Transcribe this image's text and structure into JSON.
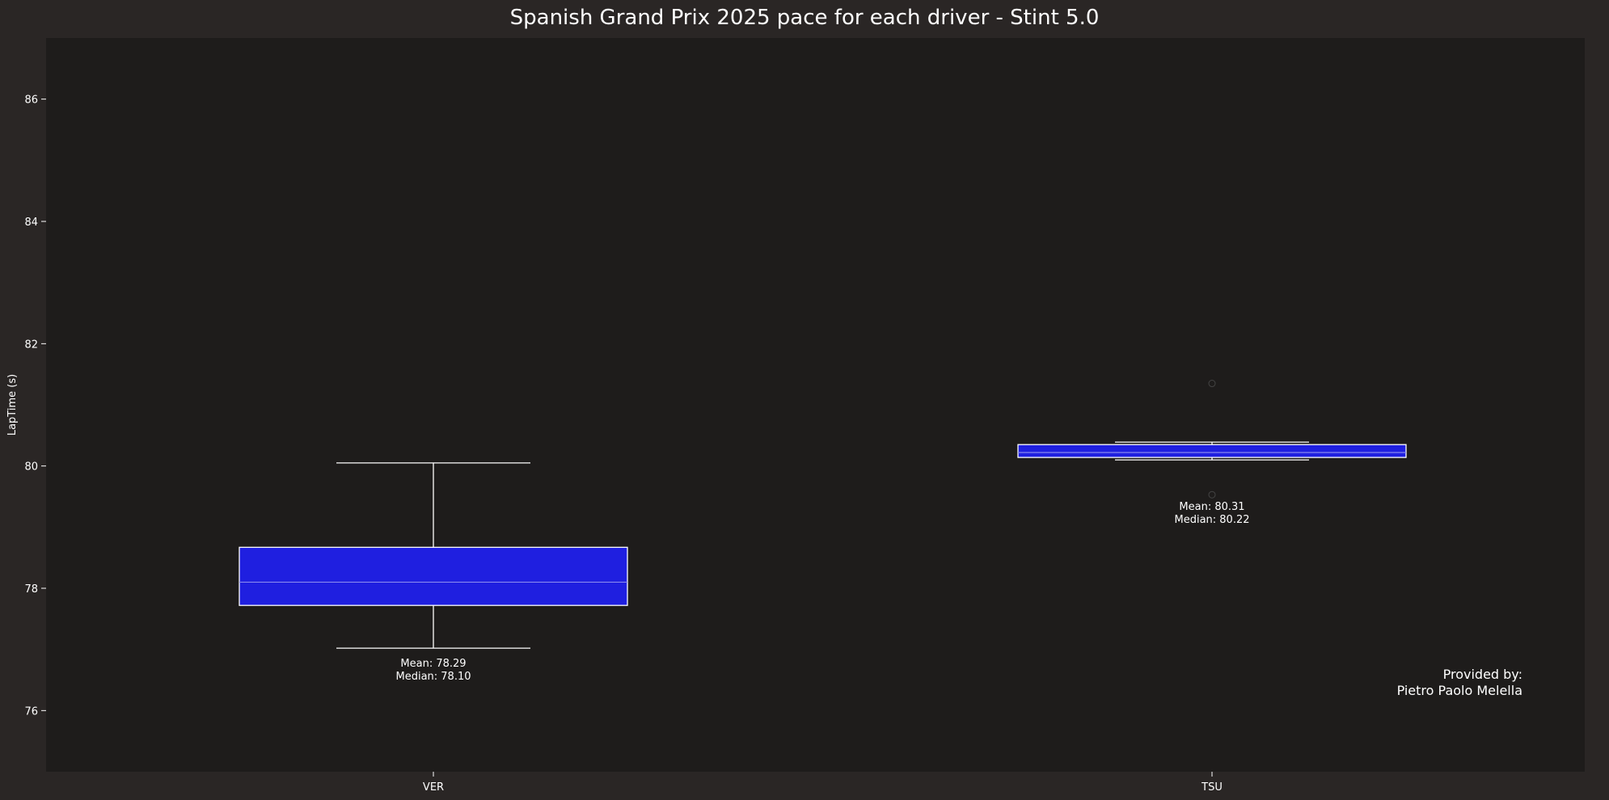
{
  "chart_data": {
    "type": "box",
    "title": "Spanish Grand Prix 2025 pace for each driver - Stint 5.0",
    "xlabel": "",
    "ylabel": "LapTime (s)",
    "ylim": [
      75,
      87
    ],
    "yticks": [
      76,
      78,
      80,
      82,
      84,
      86
    ],
    "categories": [
      "VER",
      "TSU"
    ],
    "grid": false,
    "colors": {
      "figure_bg": "#2a2625",
      "axes_bg": "#1e1c1b",
      "box_fill": "#1f1fe0",
      "line": "#ffffff",
      "median_line": "#8888ee"
    },
    "boxes": [
      {
        "category": "VER",
        "whisker_low": 77.02,
        "q1": 77.72,
        "median": 78.1,
        "q3": 78.67,
        "whisker_high": 80.05,
        "outliers": [],
        "annotation": [
          "Mean: 78.29",
          "Median: 78.10"
        ]
      },
      {
        "category": "TSU",
        "whisker_low": 80.1,
        "q1": 80.14,
        "median": 80.22,
        "q3": 80.35,
        "whisker_high": 80.39,
        "outliers": [
          81.35,
          79.53
        ],
        "annotation": [
          "Mean: 80.31",
          "Median: 80.22"
        ]
      }
    ],
    "credit": [
      "Provided by:",
      "Pietro Paolo Melella"
    ]
  }
}
